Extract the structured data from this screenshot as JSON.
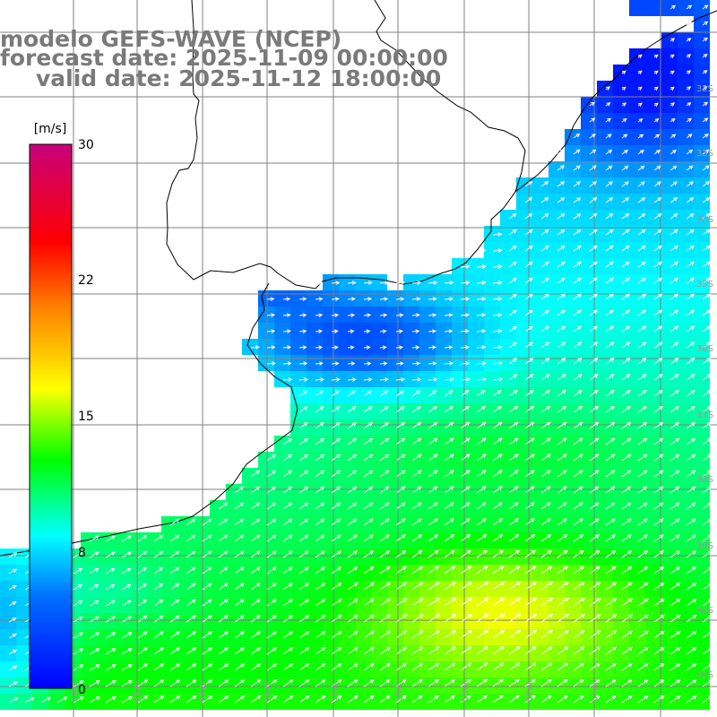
{
  "header": {
    "line1": "modelo GEFS-WAVE (NCEP)",
    "line2": "forecast date: 2025-11-09 00:00:00",
    "line3": "valid date: 2025-11-12 18:00:00"
  },
  "colorbar": {
    "unit": "[m/s]",
    "min": 0,
    "max": 30,
    "ticks": [
      "30",
      "22",
      "15",
      "8",
      "0"
    ],
    "colors": [
      "#0000ff",
      "#0070ff",
      "#00ffff",
      "#00ff00",
      "#ffff00",
      "#ff8000",
      "#ff0000",
      "#c8007a"
    ]
  },
  "map": {
    "lat_labels": [
      "32S",
      "33S",
      "34S",
      "35S",
      "36S",
      "37S",
      "38S",
      "39S",
      "40S",
      "41S"
    ],
    "lon_labels": [
      "59W",
      "58W",
      "57W",
      "56W",
      "55W",
      "54W",
      "53W",
      "52W",
      "51W"
    ],
    "colors": {
      "land": "#ffffff",
      "coast": "#000000",
      "grid": "#808080",
      "arrows": "#ffffff"
    }
  }
}
